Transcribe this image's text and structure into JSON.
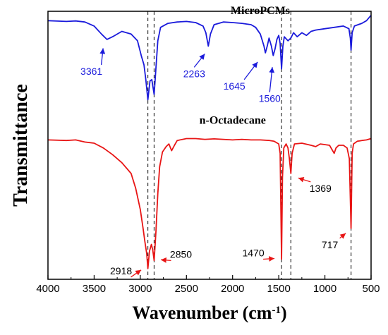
{
  "chart_data": {
    "type": "line",
    "xlabel": "Wavenumber (cm",
    "xlabel_sup": "-1",
    "xlabel_close": ")",
    "ylabel": "Transmittance",
    "xlim": [
      4000,
      500
    ],
    "x_reversed": true,
    "xticks": [
      "4000",
      "3500",
      "3000",
      "2500",
      "2000",
      "1500",
      "1000",
      "500"
    ],
    "ylim": [
      0,
      1
    ],
    "y_ticks_shown": false,
    "grid": false,
    "guide_lines": [
      2918,
      2850,
      1470,
      1369,
      717
    ],
    "series": [
      {
        "name": "MicroPCMs",
        "color": "#1a1adb",
        "points": [
          [
            4000,
            0.965
          ],
          [
            3800,
            0.962
          ],
          [
            3700,
            0.964
          ],
          [
            3600,
            0.96
          ],
          [
            3500,
            0.945
          ],
          [
            3420,
            0.915
          ],
          [
            3361,
            0.895
          ],
          [
            3300,
            0.905
          ],
          [
            3200,
            0.925
          ],
          [
            3100,
            0.915
          ],
          [
            3030,
            0.89
          ],
          [
            2990,
            0.835
          ],
          [
            2960,
            0.8
          ],
          [
            2940,
            0.745
          ],
          [
            2918,
            0.67
          ],
          [
            2895,
            0.74
          ],
          [
            2875,
            0.745
          ],
          [
            2850,
            0.69
          ],
          [
            2830,
            0.79
          ],
          [
            2810,
            0.89
          ],
          [
            2780,
            0.94
          ],
          [
            2700,
            0.955
          ],
          [
            2600,
            0.96
          ],
          [
            2500,
            0.962
          ],
          [
            2400,
            0.958
          ],
          [
            2320,
            0.945
          ],
          [
            2290,
            0.92
          ],
          [
            2263,
            0.87
          ],
          [
            2240,
            0.915
          ],
          [
            2200,
            0.95
          ],
          [
            2100,
            0.96
          ],
          [
            2000,
            0.958
          ],
          [
            1900,
            0.955
          ],
          [
            1800,
            0.95
          ],
          [
            1750,
            0.94
          ],
          [
            1700,
            0.915
          ],
          [
            1660,
            0.87
          ],
          [
            1645,
            0.845
          ],
          [
            1625,
            0.87
          ],
          [
            1605,
            0.9
          ],
          [
            1580,
            0.87
          ],
          [
            1560,
            0.835
          ],
          [
            1540,
            0.86
          ],
          [
            1520,
            0.895
          ],
          [
            1500,
            0.91
          ],
          [
            1485,
            0.88
          ],
          [
            1470,
            0.785
          ],
          [
            1455,
            0.87
          ],
          [
            1440,
            0.905
          ],
          [
            1400,
            0.89
          ],
          [
            1369,
            0.9
          ],
          [
            1340,
            0.92
          ],
          [
            1300,
            0.905
          ],
          [
            1250,
            0.92
          ],
          [
            1200,
            0.91
          ],
          [
            1150,
            0.925
          ],
          [
            1100,
            0.93
          ],
          [
            1000,
            0.935
          ],
          [
            900,
            0.94
          ],
          [
            800,
            0.945
          ],
          [
            740,
            0.935
          ],
          [
            725,
            0.9
          ],
          [
            717,
            0.855
          ],
          [
            705,
            0.92
          ],
          [
            680,
            0.945
          ],
          [
            600,
            0.955
          ],
          [
            550,
            0.965
          ],
          [
            500,
            0.985
          ]
        ]
      },
      {
        "name": "n-Octadecane",
        "color": "#e81515",
        "points": [
          [
            4000,
            0.52
          ],
          [
            3800,
            0.518
          ],
          [
            3700,
            0.52
          ],
          [
            3600,
            0.512
          ],
          [
            3500,
            0.508
          ],
          [
            3400,
            0.49
          ],
          [
            3300,
            0.465
          ],
          [
            3200,
            0.435
          ],
          [
            3100,
            0.395
          ],
          [
            3050,
            0.34
          ],
          [
            3000,
            0.26
          ],
          [
            2970,
            0.19
          ],
          [
            2950,
            0.14
          ],
          [
            2930,
            0.095
          ],
          [
            2918,
            0.04
          ],
          [
            2900,
            0.105
          ],
          [
            2880,
            0.13
          ],
          [
            2865,
            0.11
          ],
          [
            2850,
            0.07
          ],
          [
            2830,
            0.18
          ],
          [
            2810,
            0.32
          ],
          [
            2790,
            0.42
          ],
          [
            2760,
            0.475
          ],
          [
            2720,
            0.495
          ],
          [
            2690,
            0.505
          ],
          [
            2660,
            0.48
          ],
          [
            2630,
            0.5
          ],
          [
            2600,
            0.518
          ],
          [
            2500,
            0.525
          ],
          [
            2400,
            0.525
          ],
          [
            2300,
            0.522
          ],
          [
            2200,
            0.524
          ],
          [
            2100,
            0.522
          ],
          [
            2000,
            0.52
          ],
          [
            1900,
            0.522
          ],
          [
            1800,
            0.52
          ],
          [
            1700,
            0.52
          ],
          [
            1600,
            0.518
          ],
          [
            1550,
            0.515
          ],
          [
            1500,
            0.505
          ],
          [
            1485,
            0.47
          ],
          [
            1470,
            0.075
          ],
          [
            1460,
            0.38
          ],
          [
            1445,
            0.49
          ],
          [
            1420,
            0.505
          ],
          [
            1400,
            0.49
          ],
          [
            1385,
            0.45
          ],
          [
            1369,
            0.395
          ],
          [
            1355,
            0.47
          ],
          [
            1330,
            0.505
          ],
          [
            1250,
            0.508
          ],
          [
            1150,
            0.5
          ],
          [
            1100,
            0.495
          ],
          [
            1050,
            0.505
          ],
          [
            950,
            0.5
          ],
          [
            900,
            0.47
          ],
          [
            880,
            0.49
          ],
          [
            850,
            0.5
          ],
          [
            800,
            0.5
          ],
          [
            760,
            0.49
          ],
          [
            735,
            0.45
          ],
          [
            717,
            0.19
          ],
          [
            705,
            0.47
          ],
          [
            690,
            0.505
          ],
          [
            650,
            0.515
          ],
          [
            600,
            0.518
          ],
          [
            550,
            0.52
          ],
          [
            500,
            0.525
          ]
        ]
      }
    ],
    "annotations": [
      {
        "text": "3361",
        "x": 3361,
        "series": "MicroPCMs",
        "color": "#1a1adb",
        "dx": -22,
        "dy": 42
      },
      {
        "text": "2263",
        "x": 2263,
        "series": "MicroPCMs",
        "color": "#1a1adb",
        "dx": -20,
        "dy": 36
      },
      {
        "text": "1645",
        "x": 1645,
        "series": "MicroPCMs",
        "color": "#1a1adb",
        "dx": -44,
        "dy": 44
      },
      {
        "text": "1560",
        "x": 1560,
        "series": "MicroPCMs",
        "color": "#1a1adb",
        "dx": -5,
        "dy": 58
      },
      {
        "text": "2918",
        "x": 2918,
        "series": "n-Octadecane",
        "color": "#000000",
        "dx": -38,
        "dy": 0
      },
      {
        "text": "2850",
        "x": 2850,
        "series": "n-Octadecane",
        "color": "#000000",
        "dx": 38,
        "dy": -12
      },
      {
        "text": "1470",
        "x": 1470,
        "series": "n-Octadecane",
        "color": "#000000",
        "dx": -40,
        "dy": -12
      },
      {
        "text": "1369",
        "x": 1369,
        "series": "n-Octadecane",
        "color": "#000000",
        "dx": 42,
        "dy": 18
      },
      {
        "text": "717",
        "x": 717,
        "series": "n-Octadecane",
        "color": "#000000",
        "dx": -30,
        "dy": 20
      }
    ],
    "annotation_arrow_color": "#e81515",
    "annotation_arrow_color_blue": "#1a1adb"
  }
}
